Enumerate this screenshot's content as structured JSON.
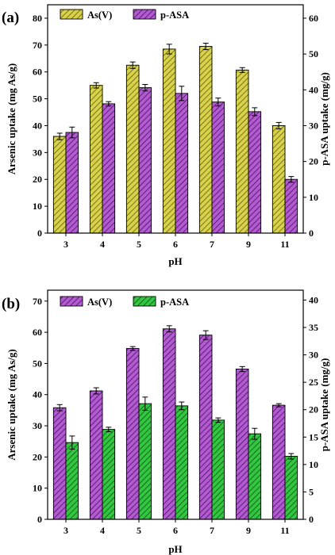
{
  "chart_data": [
    {
      "type": "bar",
      "panel_label": "(a)",
      "categories": [
        "3",
        "4",
        "5",
        "6",
        "7",
        "9",
        "11"
      ],
      "xlabel": "pH",
      "ylabel": "Arsenic uptake (mg As/g)",
      "ylabel_right": "p-ASA uptake (mg/g)",
      "ylim": [
        0,
        85
      ],
      "ylim_right": [
        0,
        63.75
      ],
      "yticks": [
        "0",
        "10",
        "20",
        "30",
        "40",
        "50",
        "60",
        "70",
        "80"
      ],
      "yticks_right": [
        "0",
        "10",
        "20",
        "30",
        "40",
        "50",
        "60"
      ],
      "legend_position": "top-left",
      "grid": false,
      "series": [
        {
          "name": "As(V)",
          "axis": "left",
          "color": "#d8d24a",
          "hatch_color": "#5a5510",
          "values": [
            36.0,
            55.0,
            62.5,
            68.5,
            69.5,
            60.7,
            40.0
          ],
          "errors": [
            1.2,
            1.0,
            1.2,
            1.8,
            1.2,
            0.9,
            1.2
          ]
        },
        {
          "name": "p-ASA",
          "axis": "right",
          "color": "#b35ad2",
          "hatch_color": "#3c0f52",
          "values": [
            28.1,
            36.1,
            40.6,
            39.0,
            36.6,
            33.9,
            15.0
          ],
          "errors": [
            1.5,
            0.6,
            0.9,
            2.0,
            1.1,
            1.1,
            0.8
          ]
        }
      ]
    },
    {
      "type": "bar",
      "panel_label": "(b)",
      "categories": [
        "3",
        "4",
        "5",
        "6",
        "7",
        "9",
        "11"
      ],
      "xlabel": "pH",
      "ylabel": "Arsenic uptake (mg As/g)",
      "ylabel_right": "p-ASA uptake (mg/g)",
      "ylim": [
        0,
        73.5
      ],
      "ylim_right": [
        0,
        41.8
      ],
      "yticks": [
        "0",
        "10",
        "20",
        "30",
        "40",
        "50",
        "60",
        "70"
      ],
      "yticks_right": [
        "0",
        "5",
        "10",
        "15",
        "20",
        "25",
        "30",
        "35",
        "40"
      ],
      "legend_position": "top-left",
      "grid": false,
      "series": [
        {
          "name": "As(V)",
          "axis": "left",
          "color": "#b35ad2",
          "hatch_color": "#3c0f52",
          "values": [
            35.8,
            41.2,
            54.8,
            61.1,
            59.1,
            48.2,
            36.6
          ],
          "errors": [
            1.0,
            1.0,
            0.6,
            1.0,
            1.4,
            0.8,
            0.5
          ]
        },
        {
          "name": "p-ASA",
          "axis": "right",
          "color": "#33c640",
          "hatch_color": "#0c4a12",
          "values": [
            14.0,
            16.4,
            21.1,
            20.7,
            18.1,
            15.6,
            11.5
          ],
          "errors": [
            1.2,
            0.4,
            1.2,
            0.7,
            0.4,
            1.0,
            0.5
          ]
        }
      ]
    }
  ]
}
